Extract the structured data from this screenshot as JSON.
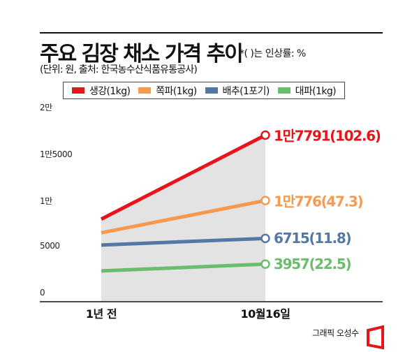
{
  "chart_data": {
    "type": "line",
    "title": "주요 김장 채소 가격 추이",
    "note": "*( )는 인상률: %",
    "subtitle": "(단위: 원, 출처: 한국농수산식품유통공사)",
    "x": [
      "1년 전",
      "10월16일"
    ],
    "ylim": [
      0,
      20000
    ],
    "yticks": [
      {
        "v": 0,
        "label": "0"
      },
      {
        "v": 5000,
        "label": "5000"
      },
      {
        "v": 10000,
        "label": "1만"
      },
      {
        "v": 15000,
        "label": "1만5000"
      },
      {
        "v": 20000,
        "label": "2만"
      }
    ],
    "legend_position": "top",
    "series": [
      {
        "name": "생강(1kg)",
        "color": "#e8141b",
        "values": [
          8781,
          17791
        ],
        "end_label": "1만7791(102.6)"
      },
      {
        "name": "쪽파(1kg)",
        "color": "#f79a4f",
        "values": [
          7316,
          10776
        ],
        "end_label": "1만776(47.3)"
      },
      {
        "name": "배추(1포기)",
        "color": "#5478a6",
        "values": [
          6006,
          6715
        ],
        "end_label": "6715(11.8)"
      },
      {
        "name": "대파(1kg)",
        "color": "#69bd6d",
        "values": [
          3230,
          3957
        ],
        "end_label": "3957(22.5)"
      }
    ],
    "area_fill_color": "#e3e3e3"
  },
  "credit": "그래픽 오성수"
}
